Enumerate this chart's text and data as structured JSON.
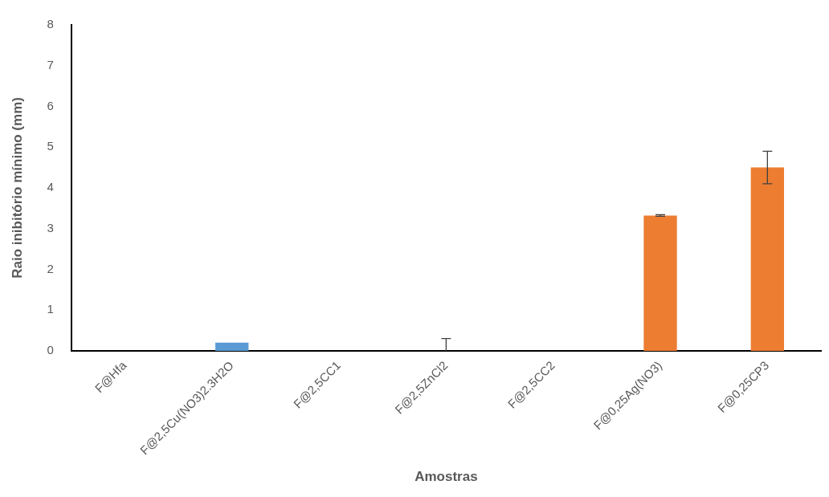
{
  "chart_data": {
    "type": "bar",
    "xlabel": "Amostras",
    "ylabel": "Raio inibitório mínimo (mm)",
    "categories": [
      "F@Hfa",
      "F@2,5Cu(NO3)2.3H2O",
      "F@2,5CC1",
      "F@2,5ZnCl2",
      "F@2,5CC2",
      "F@0,25Ag(NO3)",
      "F@0,25CP3"
    ],
    "values": [
      0,
      0.2,
      0,
      0,
      0,
      3.32,
      4.5
    ],
    "colors": [
      "#5b9bd5",
      "#5b9bd5",
      "#5b9bd5",
      "#5b9bd5",
      "#ed7d31",
      "#ed7d31",
      "#ed7d31"
    ],
    "errors": [
      null,
      null,
      null,
      [
        0,
        0.3
      ],
      null,
      0.02,
      0.4
    ],
    "ylim": [
      0,
      8
    ],
    "yticks": [
      0,
      1,
      2,
      3,
      4,
      5,
      6,
      7,
      8
    ],
    "grid": false,
    "legend": false
  }
}
